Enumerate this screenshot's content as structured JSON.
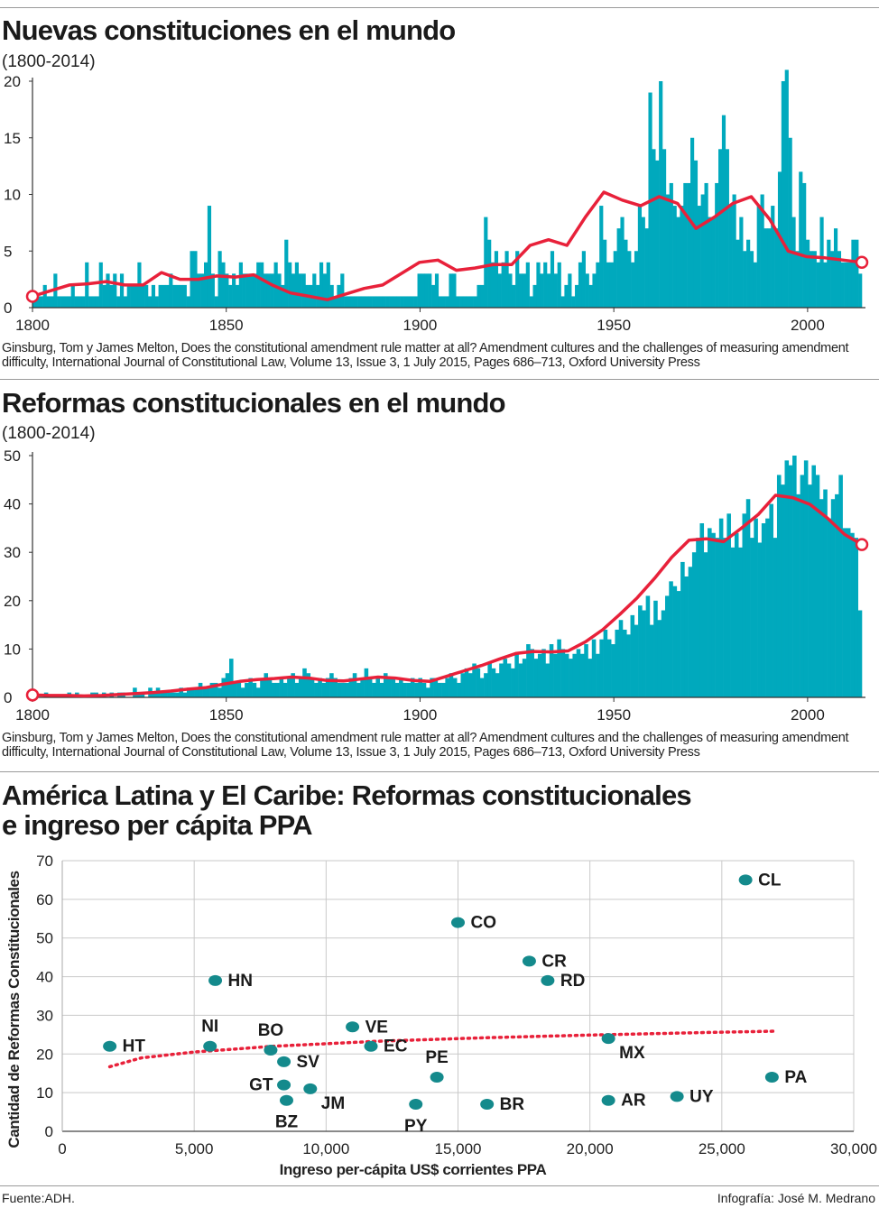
{
  "chart_data": [
    {
      "type": "bar",
      "title": "Nuevas constituciones en el mundo",
      "subtitle": "(1800-2014)",
      "xlim": [
        1800,
        2014
      ],
      "ylim": [
        0,
        20
      ],
      "x_ticks": [
        "1800",
        "1850",
        "1900",
        "1950",
        "2000"
      ],
      "y_ticks": [
        "0",
        "5",
        "10",
        "15",
        "20"
      ],
      "bar_color": "#00a9bd",
      "trend_color": "#e8213a",
      "series": [
        {
          "values": [
            1,
            1,
            1,
            2,
            1,
            1,
            3,
            1,
            1,
            1,
            1,
            2,
            1,
            1,
            1,
            4,
            1,
            1,
            1,
            4,
            2,
            3,
            2,
            3,
            1,
            3,
            1,
            2,
            2,
            2,
            4,
            2,
            2,
            1,
            2,
            1,
            2,
            2,
            2,
            3,
            2,
            2,
            2,
            2,
            1,
            5,
            5,
            3,
            3,
            4,
            9,
            3,
            1,
            5,
            4,
            3,
            2,
            3,
            2,
            4,
            3,
            3,
            3,
            3,
            4,
            4,
            3,
            3,
            3,
            4,
            3,
            2,
            6,
            4,
            3,
            4,
            3,
            3,
            2,
            2,
            3,
            2,
            4,
            3,
            4,
            2,
            1,
            2,
            3,
            1,
            1,
            1,
            1,
            1,
            1,
            1,
            1,
            1,
            1,
            1,
            1,
            1,
            1,
            1,
            1,
            1,
            1,
            1,
            1,
            1,
            3,
            3,
            3,
            3,
            2,
            3,
            1,
            1,
            1,
            3,
            3,
            1,
            1,
            1,
            1,
            1,
            1,
            2,
            2,
            8,
            6,
            4,
            5,
            3,
            4,
            5,
            3,
            2,
            5,
            3,
            3,
            4,
            1,
            2,
            4,
            3,
            4,
            3,
            5,
            3,
            4,
            1,
            2,
            3,
            1,
            2,
            4,
            5,
            3,
            2,
            3,
            4,
            9,
            6,
            4,
            4,
            5,
            7,
            8,
            6,
            5,
            4,
            5,
            9,
            8,
            7,
            19,
            14,
            13,
            20,
            14,
            10,
            11,
            9,
            8,
            9,
            11,
            11,
            15,
            13,
            9,
            10,
            11,
            8,
            8,
            11,
            14,
            17,
            14,
            9,
            10,
            6,
            8,
            5,
            6,
            5,
            4,
            9,
            10,
            7,
            7,
            9,
            7,
            12,
            20,
            21,
            15,
            8,
            5,
            12,
            11,
            6,
            5,
            5,
            4,
            8,
            4,
            6,
            5,
            7,
            5,
            4,
            4,
            4,
            6,
            6,
            3
          ]
        }
      ],
      "trend": [
        1.0,
        1.5,
        2.0,
        2.1,
        2.3,
        2.0,
        2.0,
        3.1,
        2.5,
        2.5,
        2.8,
        2.7,
        2.9,
        2.0,
        1.3,
        1.0,
        0.7,
        1.2,
        1.7,
        2.0,
        3.0,
        4.0,
        4.2,
        3.3,
        3.5,
        3.8,
        3.8,
        5.5,
        6.0,
        5.5,
        8.0,
        10.2,
        9.5,
        9.0,
        9.8,
        9.2,
        7.0,
        8.0,
        9.2,
        9.8,
        7.8,
        5.0,
        4.5,
        4.4,
        4.2,
        4.0
      ],
      "source": "Ginsburg, Tom y James Melton, Does the constitutional amendment rule matter at all? Amendment cultures and the challenges of measuring amendment difficulty, International Journal of Constitutional Law, Volume 13, Issue 3, 1 July 2015, Pages 686–713, Oxford University Press"
    },
    {
      "type": "bar",
      "title": "Reformas constitucionales en el mundo",
      "subtitle": "(1800-2014)",
      "xlim": [
        1800,
        2014
      ],
      "ylim": [
        0,
        50
      ],
      "x_ticks": [
        "1800",
        "1850",
        "1900",
        "1950",
        "2000"
      ],
      "y_ticks": [
        "0",
        "10",
        "20",
        "30",
        "40",
        "50"
      ],
      "bar_color": "#00a9bd",
      "trend_color": "#e8213a",
      "series": [
        {
          "values": [
            1,
            0,
            0,
            1,
            0,
            0,
            0,
            0,
            0,
            1,
            0,
            1,
            0,
            0,
            0,
            1,
            1,
            0,
            1,
            0,
            1,
            0,
            1,
            1,
            0,
            0,
            2,
            1,
            1,
            0,
            2,
            1,
            2,
            1,
            1,
            1,
            1,
            1,
            2,
            1,
            2,
            2,
            2,
            3,
            2,
            2,
            3,
            3,
            2,
            4,
            5,
            8,
            3,
            3,
            2,
            3,
            4,
            3,
            2,
            4,
            5,
            4,
            3,
            3,
            4,
            3,
            4,
            5,
            3,
            4,
            6,
            5,
            4,
            3,
            4,
            3,
            4,
            5,
            4,
            3,
            3,
            3,
            4,
            5,
            3,
            4,
            6,
            4,
            3,
            4,
            3,
            5,
            4,
            4,
            3,
            4,
            3,
            3,
            4,
            3,
            4,
            3,
            2,
            4,
            4,
            3,
            3,
            4,
            5,
            4,
            3,
            5,
            6,
            5,
            7,
            6,
            4,
            5,
            7,
            6,
            5,
            7,
            8,
            7,
            6,
            9,
            7,
            8,
            11,
            10,
            8,
            9,
            10,
            7,
            11,
            9,
            12,
            10,
            9,
            8,
            9,
            10,
            9,
            11,
            8,
            12,
            9,
            12,
            14,
            12,
            11,
            14,
            16,
            14,
            13,
            17,
            15,
            19,
            18,
            21,
            15,
            20,
            16,
            18,
            21,
            24,
            23,
            22,
            28,
            25,
            27,
            30,
            33,
            36,
            30,
            35,
            34,
            33,
            37,
            33,
            38,
            31,
            34,
            31,
            38,
            41,
            33,
            37,
            32,
            36,
            37,
            40,
            33,
            46,
            44,
            49,
            48,
            50,
            42,
            46,
            49,
            44,
            48,
            46,
            41,
            43,
            37,
            41,
            42,
            46,
            35,
            35,
            34,
            33,
            18
          ]
        }
      ],
      "trend": [
        0.5,
        0.4,
        0.4,
        0.3,
        0.4,
        0.6,
        0.8,
        1.0,
        1.3,
        1.7,
        2.0,
        2.7,
        3.3,
        3.7,
        3.9,
        4.2,
        4.0,
        3.5,
        3.4,
        3.8,
        4.2,
        4.0,
        3.5,
        3.3,
        4.4,
        5.5,
        6.6,
        7.9,
        9.1,
        9.5,
        9.4,
        9.6,
        11.5,
        14.0,
        17.2,
        20.6,
        24.6,
        29.0,
        32.5,
        32.8,
        32.2,
        34.9,
        37.8,
        41.8,
        41.3,
        39.9,
        37.1,
        33.7,
        31.6
      ],
      "source": "Ginsburg, Tom y James Melton, Does the constitutional amendment rule matter at all? Amendment cultures and the challenges of measuring amendment difficulty, International Journal of Constitutional Law, Volume 13, Issue 3, 1 July 2015, Pages 686–713, Oxford University Press"
    },
    {
      "type": "scatter",
      "title": "América Latina y El Caribe:  Reformas constitucionales e ingreso per cápita PPA",
      "title_lines": [
        "América Latina y El Caribe:  Reformas constitucionales",
        "e ingreso per cápita PPA"
      ],
      "xlabel": "Ingreso per-cápita US$ corrientes PPA",
      "ylabel": "Cantidad de Reformas Constitucionales",
      "xlim": [
        0,
        30000
      ],
      "ylim": [
        0,
        70
      ],
      "x_ticks": [
        "0",
        "5,000",
        "10,000",
        "15,000",
        "20,000",
        "25,000",
        "30,000"
      ],
      "y_ticks": [
        "0",
        "10",
        "20",
        "30",
        "40",
        "50",
        "60",
        "70"
      ],
      "grid": true,
      "point_color": "#148a8c",
      "trend_color": "#e8213a",
      "points": [
        {
          "label": "HT",
          "x": 1800,
          "y": 22,
          "label_pos": "right"
        },
        {
          "label": "NI",
          "x": 5600,
          "y": 22,
          "label_pos": "above"
        },
        {
          "label": "HN",
          "x": 5800,
          "y": 39,
          "label_pos": "right"
        },
        {
          "label": "BO",
          "x": 7900,
          "y": 21,
          "label_pos": "above"
        },
        {
          "label": "SV",
          "x": 8400,
          "y": 18,
          "label_pos": "right"
        },
        {
          "label": "GT",
          "x": 8400,
          "y": 12,
          "label_pos": "left"
        },
        {
          "label": "BZ",
          "x": 8500,
          "y": 8,
          "label_pos": "below"
        },
        {
          "label": "JM",
          "x": 9400,
          "y": 11,
          "label_pos": "belowright"
        },
        {
          "label": "VE",
          "x": 11000,
          "y": 27,
          "label_pos": "right"
        },
        {
          "label": "EC",
          "x": 11700,
          "y": 22,
          "label_pos": "right"
        },
        {
          "label": "PY",
          "x": 13400,
          "y": 7,
          "label_pos": "below"
        },
        {
          "label": "PE",
          "x": 14200,
          "y": 14,
          "label_pos": "above"
        },
        {
          "label": "CO",
          "x": 15000,
          "y": 54,
          "label_pos": "right"
        },
        {
          "label": "BR",
          "x": 16100,
          "y": 7,
          "label_pos": "right"
        },
        {
          "label": "CR",
          "x": 17700,
          "y": 44,
          "label_pos": "right"
        },
        {
          "label": "RD",
          "x": 18400,
          "y": 39,
          "label_pos": "right"
        },
        {
          "label": "MX",
          "x": 20700,
          "y": 24,
          "label_pos": "belowright"
        },
        {
          "label": "AR",
          "x": 20700,
          "y": 8,
          "label_pos": "right"
        },
        {
          "label": "UY",
          "x": 23300,
          "y": 9,
          "label_pos": "right"
        },
        {
          "label": "CL",
          "x": 25900,
          "y": 65,
          "label_pos": "right"
        },
        {
          "label": "PA",
          "x": 26900,
          "y": 14,
          "label_pos": "right"
        }
      ],
      "trend": [
        [
          1800,
          16.7
        ],
        [
          3000,
          19.0
        ],
        [
          5000,
          20.5
        ],
        [
          8000,
          22.0
        ],
        [
          12000,
          23.3
        ],
        [
          16000,
          24.2
        ],
        [
          20000,
          24.9
        ],
        [
          24000,
          25.5
        ],
        [
          27000,
          25.9
        ]
      ]
    }
  ],
  "footer": {
    "source": "Fuente:ADH.",
    "credit": "Infografía: José M. Medrano"
  }
}
